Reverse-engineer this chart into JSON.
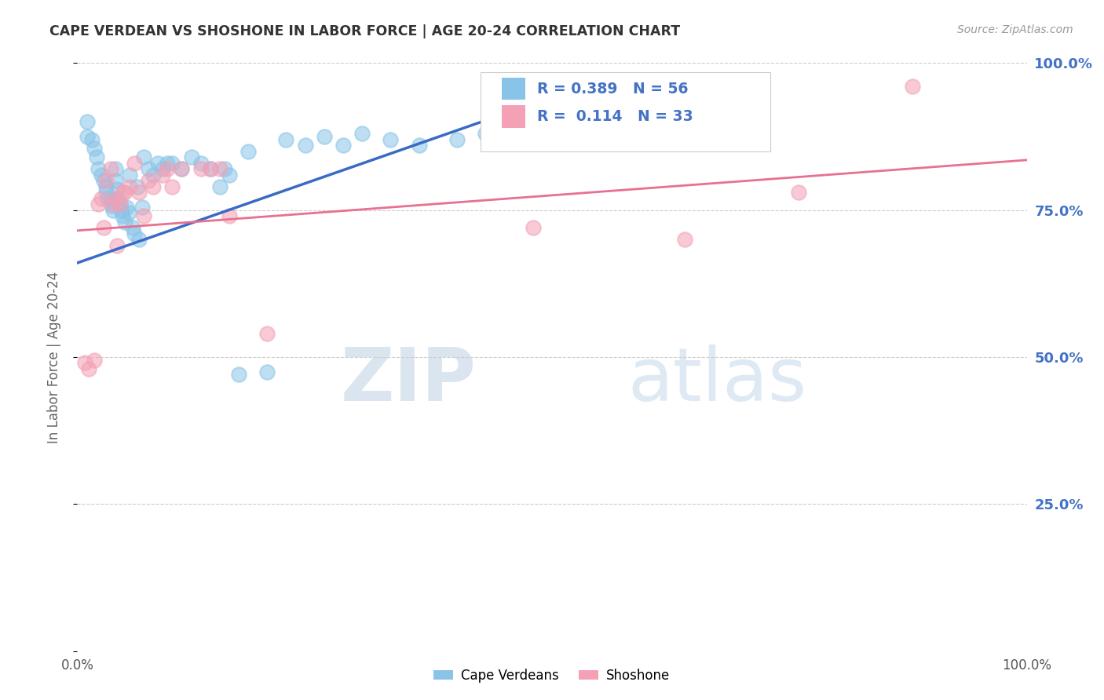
{
  "title": "CAPE VERDEAN VS SHOSHONE IN LABOR FORCE | AGE 20-24 CORRELATION CHART",
  "source": "Source: ZipAtlas.com",
  "ylabel": "In Labor Force | Age 20-24",
  "xlim": [
    0,
    1
  ],
  "ylim": [
    0,
    1
  ],
  "color_blue": "#89c4e8",
  "color_pink": "#f4a0b5",
  "color_blue_line": "#3a6bc4",
  "color_pink_line": "#e87090",
  "color_title": "#333333",
  "color_right_axis": "#4472C4",
  "color_source": "#999999",
  "watermark_zip": "ZIP",
  "watermark_atlas": "atlas",
  "legend_label_cv": "Cape Verdeans",
  "legend_label_sh": "Shoshone",
  "cv_x": [
    0.01,
    0.01,
    0.015,
    0.018,
    0.02,
    0.022,
    0.025,
    0.028,
    0.03,
    0.03,
    0.032,
    0.035,
    0.036,
    0.038,
    0.04,
    0.04,
    0.042,
    0.043,
    0.045,
    0.046,
    0.048,
    0.05,
    0.052,
    0.054,
    0.055,
    0.058,
    0.06,
    0.063,
    0.065,
    0.068,
    0.07,
    0.075,
    0.08,
    0.085,
    0.09,
    0.095,
    0.1,
    0.11,
    0.12,
    0.13,
    0.14,
    0.15,
    0.155,
    0.16,
    0.17,
    0.18,
    0.2,
    0.22,
    0.24,
    0.26,
    0.28,
    0.3,
    0.33,
    0.36,
    0.4,
    0.43
  ],
  "cv_y": [
    0.875,
    0.9,
    0.87,
    0.855,
    0.84,
    0.82,
    0.81,
    0.8,
    0.79,
    0.78,
    0.77,
    0.765,
    0.758,
    0.75,
    0.82,
    0.8,
    0.785,
    0.77,
    0.76,
    0.75,
    0.74,
    0.73,
    0.755,
    0.745,
    0.81,
    0.72,
    0.71,
    0.79,
    0.7,
    0.755,
    0.84,
    0.82,
    0.81,
    0.83,
    0.82,
    0.83,
    0.83,
    0.82,
    0.84,
    0.83,
    0.82,
    0.79,
    0.82,
    0.81,
    0.47,
    0.85,
    0.475,
    0.87,
    0.86,
    0.875,
    0.86,
    0.88,
    0.87,
    0.86,
    0.87,
    0.88
  ],
  "sh_x": [
    0.008,
    0.012,
    0.018,
    0.022,
    0.025,
    0.028,
    0.03,
    0.035,
    0.038,
    0.04,
    0.042,
    0.045,
    0.048,
    0.05,
    0.055,
    0.06,
    0.065,
    0.07,
    0.075,
    0.08,
    0.09,
    0.095,
    0.1,
    0.11,
    0.13,
    0.14,
    0.15,
    0.16,
    0.2,
    0.48,
    0.64,
    0.76,
    0.88
  ],
  "sh_y": [
    0.49,
    0.48,
    0.495,
    0.76,
    0.77,
    0.72,
    0.8,
    0.82,
    0.76,
    0.77,
    0.69,
    0.76,
    0.78,
    0.78,
    0.79,
    0.83,
    0.78,
    0.74,
    0.8,
    0.79,
    0.81,
    0.82,
    0.79,
    0.82,
    0.82,
    0.82,
    0.82,
    0.74,
    0.54,
    0.72,
    0.7,
    0.78,
    0.96
  ],
  "cv_line_x0": 0.0,
  "cv_line_x1": 0.55,
  "cv_line_y0": 0.66,
  "cv_line_y1": 0.97,
  "sh_line_x0": 0.0,
  "sh_line_x1": 1.0,
  "sh_line_y0": 0.715,
  "sh_line_y1": 0.835
}
